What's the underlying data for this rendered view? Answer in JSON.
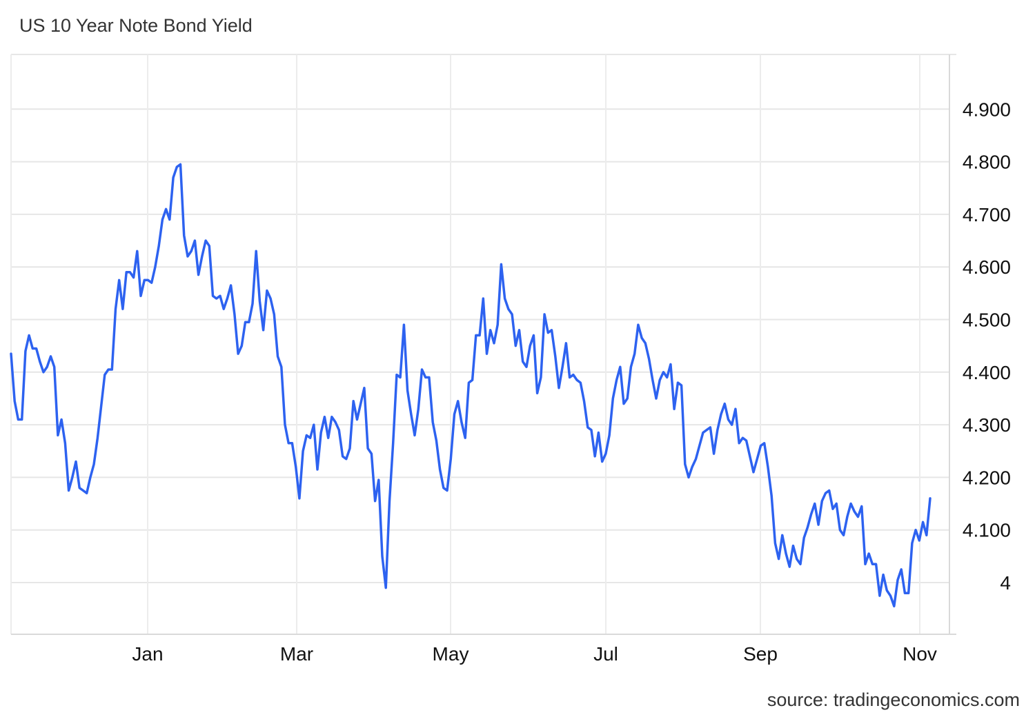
{
  "chart_data": {
    "type": "line",
    "title": "US 10 Year Note Bond Yield",
    "source": "source: tradingeconomics.com",
    "x_tick_labels": [
      "Jan",
      "Mar",
      "May",
      "Jul",
      "Sep",
      "Nov"
    ],
    "y_tick_labels": [
      "4",
      "4.100",
      "4.200",
      "4.300",
      "4.400",
      "4.500",
      "4.600",
      "4.700",
      "4.800",
      "4.900"
    ],
    "y_ticks": [
      4.0,
      4.1,
      4.2,
      4.3,
      4.4,
      4.5,
      4.6,
      4.7,
      4.8,
      4.9
    ],
    "ylim": [
      3.9,
      5.0
    ],
    "grid": true,
    "legend": "none",
    "y_axis_position": "right",
    "series": [
      {
        "color": "#2d62f0",
        "values": [
          4.435,
          4.345,
          4.31,
          4.31,
          4.44,
          4.47,
          4.445,
          4.445,
          4.42,
          4.4,
          4.41,
          4.43,
          4.41,
          4.28,
          4.31,
          4.265,
          4.175,
          4.2,
          4.23,
          4.18,
          4.175,
          4.17,
          4.2,
          4.225,
          4.275,
          4.335,
          4.395,
          4.405,
          4.405,
          4.52,
          4.575,
          4.52,
          4.59,
          4.59,
          4.58,
          4.63,
          4.545,
          4.575,
          4.575,
          4.57,
          4.6,
          4.64,
          4.69,
          4.71,
          4.69,
          4.77,
          4.79,
          4.795,
          4.66,
          4.62,
          4.63,
          4.65,
          4.585,
          4.62,
          4.65,
          4.64,
          4.545,
          4.54,
          4.545,
          4.52,
          4.54,
          4.565,
          4.51,
          4.435,
          4.45,
          4.495,
          4.495,
          4.53,
          4.63,
          4.535,
          4.48,
          4.555,
          4.54,
          4.51,
          4.43,
          4.41,
          4.3,
          4.265,
          4.265,
          4.22,
          4.16,
          4.25,
          4.28,
          4.275,
          4.3,
          4.215,
          4.285,
          4.315,
          4.275,
          4.315,
          4.305,
          4.29,
          4.24,
          4.235,
          4.255,
          4.345,
          4.31,
          4.34,
          4.37,
          4.255,
          4.245,
          4.155,
          4.195,
          4.05,
          3.99,
          4.155,
          4.265,
          4.395,
          4.39,
          4.49,
          4.365,
          4.32,
          4.28,
          4.33,
          4.405,
          4.39,
          4.39,
          4.305,
          4.27,
          4.215,
          4.18,
          4.175,
          4.235,
          4.32,
          4.345,
          4.305,
          4.275,
          4.38,
          4.385,
          4.47,
          4.47,
          4.54,
          4.435,
          4.48,
          4.455,
          4.49,
          4.605,
          4.54,
          4.52,
          4.51,
          4.45,
          4.48,
          4.42,
          4.41,
          4.45,
          4.47,
          4.36,
          4.39,
          4.51,
          4.475,
          4.48,
          4.43,
          4.37,
          4.41,
          4.455,
          4.39,
          4.395,
          4.385,
          4.38,
          4.345,
          4.295,
          4.29,
          4.24,
          4.285,
          4.23,
          4.245,
          4.28,
          4.35,
          4.385,
          4.41,
          4.34,
          4.35,
          4.41,
          4.435,
          4.49,
          4.465,
          4.455,
          4.425,
          4.385,
          4.35,
          4.385,
          4.4,
          4.39,
          4.415,
          4.33,
          4.38,
          4.375,
          4.225,
          4.2,
          4.22,
          4.235,
          4.26,
          4.285,
          4.29,
          4.295,
          4.245,
          4.29,
          4.32,
          4.34,
          4.31,
          4.3,
          4.33,
          4.265,
          4.275,
          4.27,
          4.24,
          4.21,
          4.235,
          4.26,
          4.265,
          4.22,
          4.165,
          4.075,
          4.045,
          4.09,
          4.055,
          4.03,
          4.07,
          4.045,
          4.035,
          4.085,
          4.105,
          4.13,
          4.15,
          4.11,
          4.155,
          4.17,
          4.175,
          4.14,
          4.15,
          4.1,
          4.09,
          4.125,
          4.15,
          4.135,
          4.125,
          4.145,
          4.035,
          4.055,
          4.035,
          4.035,
          3.975,
          4.015,
          3.985,
          3.975,
          3.955,
          4.005,
          4.025,
          3.98,
          3.98,
          4.075,
          4.1,
          4.08,
          4.115,
          4.09,
          4.16
        ]
      }
    ]
  }
}
